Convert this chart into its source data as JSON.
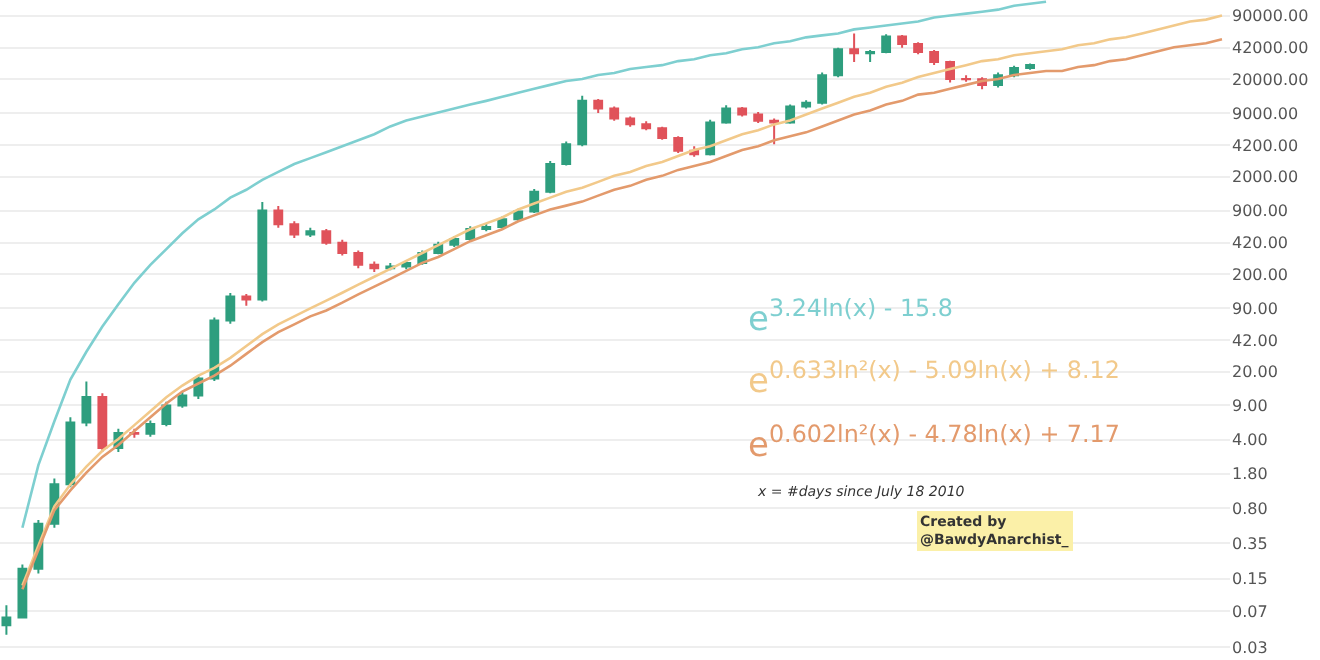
{
  "chart_data": {
    "type": "candlestick",
    "categories": [
      null,
      null,
      null,
      null,
      null,
      null,
      null,
      null,
      null,
      null,
      null,
      null,
      null,
      null,
      null,
      null,
      null,
      null,
      null,
      null,
      null,
      null,
      null,
      null,
      null,
      null,
      null,
      null,
      null,
      null,
      null,
      null,
      null,
      null,
      null,
      null,
      null,
      null,
      null,
      null,
      null,
      null,
      null,
      null,
      null,
      null,
      null,
      null,
      null,
      null,
      null,
      null,
      null,
      null,
      null,
      null,
      null,
      null,
      null,
      null,
      null,
      null,
      null,
      null,
      null,
      null,
      null,
      null,
      null,
      null,
      null,
      null,
      null,
      null,
      null,
      null,
      null
    ],
    "ohlc": [
      [
        0.05,
        0.08,
        0.04,
        0.06
      ],
      [
        0.06,
        0.21,
        0.06,
        0.19
      ],
      [
        0.19,
        0.6,
        0.17,
        0.55
      ],
      [
        0.55,
        1.6,
        0.5,
        1.4
      ],
      [
        1.4,
        6.8,
        1.3,
        6
      ],
      [
        6,
        15.8,
        5.5,
        11
      ],
      [
        11,
        12,
        3,
        3.3
      ],
      [
        3.3,
        5.2,
        3,
        4.7
      ],
      [
        4.7,
        5.2,
        4.2,
        4.6
      ],
      [
        4.6,
        6.3,
        4.3,
        5.8
      ],
      [
        5.8,
        9.8,
        5.5,
        9
      ],
      [
        9,
        12.4,
        8.5,
        11.4
      ],
      [
        11.4,
        18.5,
        10.5,
        17
      ],
      [
        17,
        72,
        16,
        67
      ],
      [
        67,
        128,
        62,
        118
      ],
      [
        118,
        125,
        95,
        110
      ],
      [
        110,
        1100,
        105,
        900
      ],
      [
        900,
        1000,
        600,
        650
      ],
      [
        650,
        700,
        470,
        510
      ],
      [
        510,
        600,
        480,
        550
      ],
      [
        550,
        580,
        400,
        420
      ],
      [
        420,
        450,
        310,
        330
      ],
      [
        330,
        350,
        230,
        250
      ],
      [
        250,
        270,
        210,
        230
      ],
      [
        230,
        260,
        220,
        240
      ],
      [
        240,
        280,
        225,
        260
      ],
      [
        260,
        350,
        250,
        330
      ],
      [
        330,
        430,
        320,
        400
      ],
      [
        400,
        490,
        380,
        460
      ],
      [
        460,
        620,
        440,
        580
      ],
      [
        580,
        660,
        550,
        610
      ],
      [
        610,
        780,
        590,
        730
      ],
      [
        730,
        940,
        700,
        880
      ],
      [
        880,
        1500,
        850,
        1400
      ],
      [
        1400,
        2900,
        1350,
        2700
      ],
      [
        2700,
        4600,
        2600,
        4300
      ],
      [
        4300,
        13500,
        4100,
        12000
      ],
      [
        12000,
        12500,
        9000,
        10000
      ],
      [
        10000,
        10500,
        7500,
        7900
      ],
      [
        7900,
        8300,
        6500,
        6900
      ],
      [
        6900,
        7400,
        6000,
        6300
      ],
      [
        6300,
        6500,
        4800,
        5000
      ],
      [
        5000,
        5200,
        3500,
        3700
      ],
      [
        3700,
        4100,
        3200,
        3400
      ],
      [
        3400,
        7700,
        3300,
        7200
      ],
      [
        7200,
        10800,
        7000,
        10000
      ],
      [
        10000,
        10400,
        8300,
        8700
      ],
      [
        8700,
        9200,
        7100,
        7500
      ],
      [
        7500,
        7900,
        4300,
        7200
      ],
      [
        7200,
        11000,
        7000,
        10500
      ],
      [
        10500,
        12200,
        10000,
        11500
      ],
      [
        11500,
        23500,
        11000,
        22000
      ],
      [
        22000,
        42000,
        21000,
        40600
      ],
      [
        40600,
        59000,
        30000,
        37000
      ],
      [
        37000,
        40000,
        30000,
        38000
      ],
      [
        38000,
        58000,
        37000,
        55000
      ],
      [
        55000,
        57000,
        42000,
        46000
      ],
      [
        46000,
        48000,
        36000,
        38000
      ],
      [
        38000,
        40000,
        28000,
        30000
      ],
      [
        30000,
        31000,
        18500,
        20100
      ],
      [
        20100,
        22000,
        18800,
        20000
      ],
      [
        20000,
        21000,
        15800,
        17500
      ],
      [
        17500,
        23500,
        16500,
        22000
      ],
      [
        22000,
        27500,
        21000,
        26000
      ],
      [
        26000,
        29000,
        25000,
        28000
      ],
      null,
      null,
      null,
      null,
      null,
      null,
      null,
      null,
      null,
      null,
      null,
      null
    ],
    "colors": [
      "#2e9e7e",
      "#2e9e7e",
      "#2e9e7e",
      "#2e9e7e",
      "#2e9e7e",
      "#2e9e7e",
      "#e0525a",
      "#2e9e7e",
      "#e0525a",
      "#2e9e7e",
      "#2e9e7e",
      "#2e9e7e",
      "#2e9e7e",
      "#2e9e7e",
      "#2e9e7e",
      "#e0525a",
      "#2e9e7e",
      "#e0525a",
      "#e0525a",
      "#2e9e7e",
      "#e0525a",
      "#e0525a",
      "#e0525a",
      "#e0525a",
      "#2e9e7e",
      "#2e9e7e",
      "#2e9e7e",
      "#2e9e7e",
      "#2e9e7e",
      "#2e9e7e",
      "#2e9e7e",
      "#2e9e7e",
      "#2e9e7e",
      "#2e9e7e",
      "#2e9e7e",
      "#2e9e7e",
      "#2e9e7e",
      "#e0525a",
      "#e0525a",
      "#e0525a",
      "#e0525a",
      "#e0525a",
      "#e0525a",
      "#e0525a",
      "#2e9e7e",
      "#2e9e7e",
      "#e0525a",
      "#e0525a",
      "#e0525a",
      "#2e9e7e",
      "#2e9e7e",
      "#2e9e7e",
      "#2e9e7e",
      "#e0525a",
      "#2e9e7e",
      "#2e9e7e",
      "#e0525a",
      "#e0525a",
      "#e0525a",
      "#e0525a",
      "#e0525a",
      "#e0525a",
      "#2e9e7e",
      "#2e9e7e",
      "#2e9e7e",
      null,
      null,
      null,
      null,
      null,
      null,
      null,
      null,
      null,
      null,
      null,
      null
    ],
    "series": [
      {
        "type": "line",
        "color": "#7ecfd0",
        "values": [
          null,
          0.5,
          2.2,
          6.2,
          16.6,
          32,
          58,
          98,
          163,
          249,
          362,
          526,
          730,
          923,
          1220,
          1470,
          1860,
          2240,
          2700,
          3100,
          3570,
          4110,
          4730,
          5450,
          6560,
          7550,
          8300,
          9100,
          10000,
          11000,
          12000,
          13200,
          14500,
          16000,
          17500,
          19200,
          20100,
          22100,
          23200,
          25500,
          26700,
          27900,
          30700,
          32100,
          35300,
          37000,
          40600,
          42600,
          46800,
          49000,
          53800,
          56400,
          59000,
          64900,
          67900,
          71100,
          74600,
          78200,
          85900,
          90000,
          94200,
          98600,
          103500,
          113500,
          119100,
          124700,
          null,
          null,
          null,
          null,
          null,
          null,
          null,
          null,
          null,
          null,
          null
        ]
      },
      {
        "type": "line",
        "color": "#f2c98a",
        "values": [
          null,
          0.128,
          0.327,
          0.83,
          1.39,
          2.12,
          3.08,
          4.07,
          5.65,
          7.83,
          10.9,
          14.4,
          18.2,
          21.9,
          27.7,
          36.6,
          48.5,
          61.2,
          73.8,
          89.1,
          107,
          129,
          156,
          188,
          227,
          274,
          330,
          397,
          479,
          578,
          664,
          764,
          923,
          1060,
          1220,
          1400,
          1540,
          1770,
          2040,
          2240,
          2580,
          2830,
          3260,
          3750,
          4110,
          4730,
          5450,
          5980,
          6880,
          7550,
          8690,
          10000,
          11500,
          13200,
          14500,
          16700,
          18400,
          21100,
          23200,
          25500,
          27900,
          30700,
          32100,
          35300,
          37000,
          38800,
          40600,
          44600,
          46800,
          51300,
          53800,
          59000,
          64900,
          71100,
          78200,
          81800,
          90000
        ]
      },
      {
        "type": "line",
        "color": "#e39a6c",
        "values": [
          null,
          0.117,
          0.297,
          0.76,
          1.21,
          1.84,
          2.67,
          3.54,
          4.91,
          6.81,
          9.44,
          12.5,
          15.1,
          18.2,
          23.0,
          30.4,
          40.2,
          50.8,
          61.2,
          73.8,
          84.9,
          102,
          124,
          149,
          179,
          216,
          261,
          300,
          362,
          436,
          502,
          578,
          697,
          802,
          923,
          1010,
          1110,
          1280,
          1470,
          1610,
          1860,
          2040,
          2350,
          2580,
          2830,
          3260,
          3750,
          4110,
          4730,
          5200,
          5700,
          6560,
          7550,
          8690,
          9550,
          11000,
          12000,
          13900,
          14500,
          16000,
          17500,
          19200,
          20100,
          22100,
          23200,
          24300,
          24300,
          26700,
          27900,
          30700,
          32100,
          35300,
          38800,
          42600,
          44600,
          46800,
          51300
        ]
      }
    ],
    "log": true,
    "grid": "y",
    "tick_labels": "y",
    "ylim": [
      0.022,
      130000
    ],
    "yticks": [
      {
        "value": 0.03,
        "label": "0.03"
      },
      {
        "value": 0.07,
        "label": "0.07"
      },
      {
        "value": 0.15,
        "label": "0.15"
      },
      {
        "value": 0.35,
        "label": "0.35"
      },
      {
        "value": 0.8,
        "label": "0.80"
      },
      {
        "value": 1.8,
        "label": "1.80"
      },
      {
        "value": 4,
        "label": "4.00"
      },
      {
        "value": 9,
        "label": "9.00"
      },
      {
        "value": 20,
        "label": "20.00"
      },
      {
        "value": 42,
        "label": "42.00"
      },
      {
        "value": 90,
        "label": "90.00"
      },
      {
        "value": 200,
        "label": "200.00"
      },
      {
        "value": 420,
        "label": "420.00"
      },
      {
        "value": 900,
        "label": "900.00"
      },
      {
        "value": 2000,
        "label": "2000.00"
      },
      {
        "value": 4200,
        "label": "4200.00"
      },
      {
        "value": 9000,
        "label": "9000.00"
      },
      {
        "value": 20000,
        "label": "20000.00"
      },
      {
        "value": 42000,
        "label": "42000.00"
      },
      {
        "value": 90000,
        "label": "90000.00"
      }
    ],
    "annotations": [
      "e$^{3.24ln(x) - 15.8}$",
      "e$^{0.633ln²(x) - 5.09ln(x) + 8.12}$",
      "e$^{0.602ln²(x) - 4.78ln(x) + 7.17}$",
      "x = #days since July 18 2010",
      "Created by\n@BawdyAnarchist_"
    ]
  }
}
